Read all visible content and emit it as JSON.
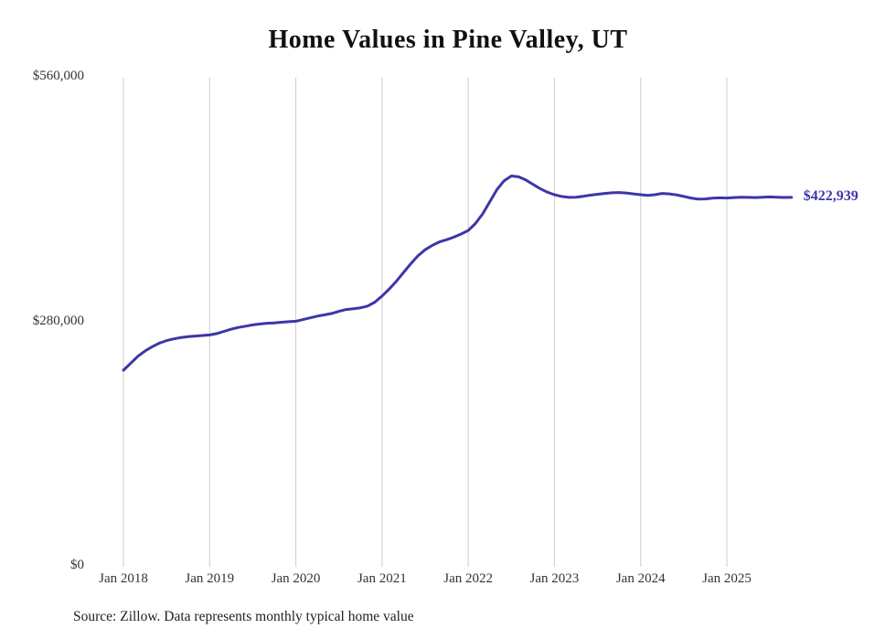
{
  "title": "Home Values in Pine Valley, UT",
  "source_note": "Source: Zillow. Data represents monthly typical home value",
  "end_label": "$422,939",
  "colors": {
    "line": "#3d36a8",
    "grid": "#cccccc",
    "axis_text": "#333333",
    "title_text": "#111111",
    "final_label": "#3d36a8"
  },
  "chart_data": {
    "type": "line",
    "title": "Home Values in Pine Valley, UT",
    "xlabel": "",
    "ylabel": "",
    "ylim": [
      0,
      560000
    ],
    "grid": "vertical-yearly",
    "legend": "none",
    "y_ticks": [
      {
        "label": "$0",
        "value": 0
      },
      {
        "label": "$280,000",
        "value": 280000
      },
      {
        "label": "$560,000",
        "value": 560000
      }
    ],
    "x_tick_labels": [
      "Jan 2018",
      "Jan 2019",
      "Jan 2020",
      "Jan 2021",
      "Jan 2022",
      "Jan 2023",
      "Jan 2024",
      "Jan 2025"
    ],
    "x_start_month": "Jan 2018",
    "x_end_month": "Oct 2025",
    "final_value": 422939,
    "series": [
      {
        "name": "Typical home value",
        "values": [
          225000,
          233000,
          241000,
          247000,
          252000,
          256000,
          259000,
          261000,
          262500,
          263500,
          264200,
          264800,
          265500,
          267000,
          269500,
          272000,
          274000,
          275500,
          277000,
          278000,
          278800,
          279300,
          280000,
          280600,
          281200,
          283000,
          285000,
          287000,
          288500,
          290000,
          292500,
          294500,
          295500,
          296500,
          298500,
          303000,
          310000,
          318000,
          327000,
          337000,
          347000,
          356000,
          363000,
          368000,
          372000,
          374500,
          377500,
          381000,
          385000,
          393000,
          404000,
          418000,
          432000,
          442000,
          447500,
          446500,
          443000,
          438000,
          433000,
          429000,
          426000,
          424000,
          423000,
          423200,
          424200,
          425500,
          426500,
          427500,
          428200,
          428500,
          428000,
          427000,
          426000,
          425200,
          426000,
          427500,
          427000,
          425800,
          424000,
          422200,
          421000,
          421200,
          422000,
          422500,
          422300,
          422800,
          423200,
          423000,
          422800,
          423200,
          423500,
          423200,
          422900,
          422939
        ]
      }
    ]
  }
}
